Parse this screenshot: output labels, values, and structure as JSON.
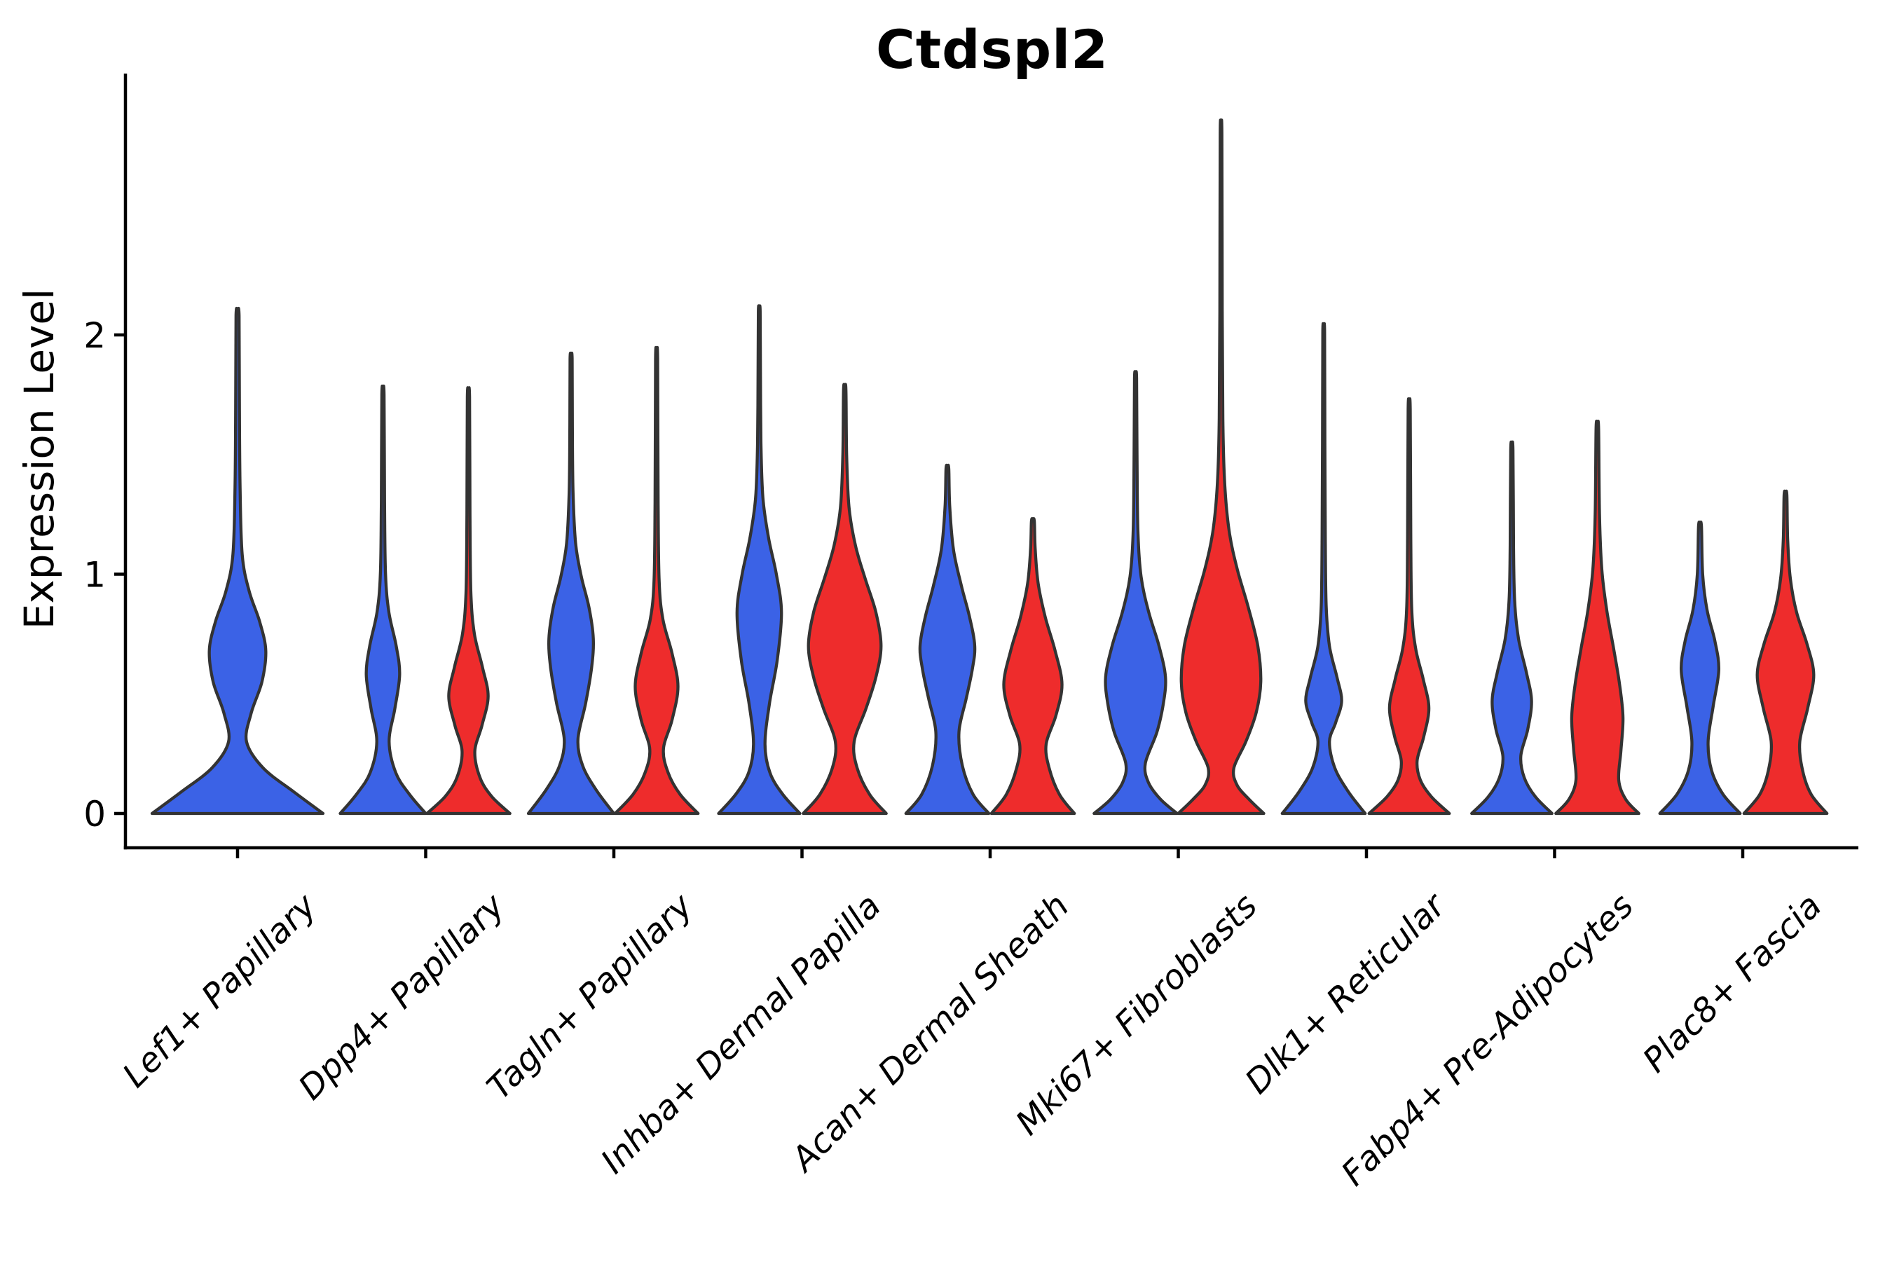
{
  "title": "Ctdspl2",
  "y_axis_label": "Expression Level",
  "chart_data": {
    "type": "violin",
    "title": "Ctdspl2",
    "xlabel": "",
    "ylabel": "Expression Level",
    "ylim": [
      0,
      2.95
    ],
    "yticks": [
      "0",
      "1",
      "2"
    ],
    "ytick_values": [
      0,
      1,
      2
    ],
    "grid": false,
    "legend": "none",
    "x_tick_label_style": "italic, rotated 45deg, anchored right",
    "categories": [
      "Lef1+ Papillary",
      "Dpp4+ Papillary",
      "Tagln+ Papillary",
      "Inhba+ Dermal Papilla",
      "Acan+ Dermal Sheath",
      "Mki67+ Fibroblasts",
      "Dlk1+ Reticular",
      "Fabp4+ Pre-Adipocytes",
      "Plac8+ Fascia"
    ],
    "group_colors": {
      "blue": "#3B62E6",
      "red": "#EE2C2C"
    },
    "outline_color": "#333333",
    "series": [
      {
        "name": "blue",
        "max_expression": [
          2.08,
          1.75,
          1.9,
          2.1,
          1.44,
          1.82,
          2.01,
          1.52,
          1.2
        ]
      },
      {
        "name": "red",
        "max_expression": [
          null,
          1.74,
          1.9,
          1.77,
          1.22,
          2.84,
          1.69,
          1.61,
          1.33
        ]
      }
    ],
    "violins": [
      {
        "category_index": 0,
        "group": "blue",
        "side": "center",
        "width": "full",
        "max": 2.08,
        "profile": [
          [
            0,
            1.0
          ],
          [
            0.09,
            0.66
          ],
          [
            0.19,
            0.3
          ],
          [
            0.3,
            0.105
          ],
          [
            0.42,
            0.16
          ],
          [
            0.55,
            0.285
          ],
          [
            0.68,
            0.33
          ],
          [
            0.8,
            0.26
          ],
          [
            0.93,
            0.135
          ],
          [
            1.08,
            0.055
          ],
          [
            1.35,
            0.03
          ],
          [
            1.7,
            0.022
          ],
          [
            2.08,
            0.018
          ]
        ]
      },
      {
        "category_index": 1,
        "group": "blue",
        "side": "left",
        "width": "half",
        "max": 1.75,
        "profile": [
          [
            0,
            1.0
          ],
          [
            0.08,
            0.62
          ],
          [
            0.17,
            0.3
          ],
          [
            0.3,
            0.145
          ],
          [
            0.44,
            0.28
          ],
          [
            0.58,
            0.39
          ],
          [
            0.7,
            0.31
          ],
          [
            0.84,
            0.14
          ],
          [
            1.0,
            0.06
          ],
          [
            1.3,
            0.038
          ],
          [
            1.75,
            0.026
          ]
        ]
      },
      {
        "category_index": 1,
        "group": "red",
        "side": "right",
        "width": "half",
        "max": 1.74,
        "profile": [
          [
            0,
            0.97
          ],
          [
            0.07,
            0.55
          ],
          [
            0.15,
            0.27
          ],
          [
            0.26,
            0.15
          ],
          [
            0.37,
            0.32
          ],
          [
            0.49,
            0.46
          ],
          [
            0.61,
            0.33
          ],
          [
            0.75,
            0.14
          ],
          [
            0.92,
            0.058
          ],
          [
            1.25,
            0.036
          ],
          [
            1.74,
            0.026
          ]
        ]
      },
      {
        "category_index": 2,
        "group": "blue",
        "side": "left",
        "width": "half",
        "max": 1.9,
        "profile": [
          [
            0,
            1.0
          ],
          [
            0.1,
            0.58
          ],
          [
            0.2,
            0.27
          ],
          [
            0.31,
            0.16
          ],
          [
            0.46,
            0.34
          ],
          [
            0.61,
            0.48
          ],
          [
            0.73,
            0.52
          ],
          [
            0.86,
            0.42
          ],
          [
            0.99,
            0.24
          ],
          [
            1.13,
            0.105
          ],
          [
            1.35,
            0.045
          ],
          [
            1.62,
            0.03
          ],
          [
            1.9,
            0.024
          ]
        ]
      },
      {
        "category_index": 2,
        "group": "red",
        "side": "right",
        "width": "half",
        "max": 1.9,
        "profile": [
          [
            0,
            0.97
          ],
          [
            0.08,
            0.55
          ],
          [
            0.17,
            0.27
          ],
          [
            0.27,
            0.16
          ],
          [
            0.39,
            0.36
          ],
          [
            0.53,
            0.5
          ],
          [
            0.67,
            0.36
          ],
          [
            0.81,
            0.15
          ],
          [
            0.97,
            0.06
          ],
          [
            1.3,
            0.036
          ],
          [
            1.9,
            0.024
          ]
        ]
      },
      {
        "category_index": 3,
        "group": "blue",
        "side": "left",
        "width": "half",
        "max": 2.1,
        "profile": [
          [
            0,
            0.95
          ],
          [
            0.08,
            0.55
          ],
          [
            0.17,
            0.25
          ],
          [
            0.29,
            0.135
          ],
          [
            0.46,
            0.24
          ],
          [
            0.64,
            0.42
          ],
          [
            0.84,
            0.52
          ],
          [
            1.0,
            0.4
          ],
          [
            1.15,
            0.22
          ],
          [
            1.32,
            0.085
          ],
          [
            1.55,
            0.04
          ],
          [
            1.85,
            0.028
          ],
          [
            2.1,
            0.022
          ]
        ]
      },
      {
        "category_index": 3,
        "group": "red",
        "side": "right",
        "width": "half",
        "max": 1.77,
        "profile": [
          [
            0,
            0.97
          ],
          [
            0.08,
            0.58
          ],
          [
            0.19,
            0.29
          ],
          [
            0.3,
            0.22
          ],
          [
            0.44,
            0.5
          ],
          [
            0.57,
            0.73
          ],
          [
            0.7,
            0.85
          ],
          [
            0.84,
            0.73
          ],
          [
            0.98,
            0.48
          ],
          [
            1.12,
            0.25
          ],
          [
            1.28,
            0.1
          ],
          [
            1.5,
            0.045
          ],
          [
            1.77,
            0.028
          ]
        ]
      },
      {
        "category_index": 4,
        "group": "blue",
        "side": "left",
        "width": "half",
        "max": 1.44,
        "profile": [
          [
            0,
            0.97
          ],
          [
            0.08,
            0.6
          ],
          [
            0.2,
            0.35
          ],
          [
            0.34,
            0.27
          ],
          [
            0.48,
            0.44
          ],
          [
            0.6,
            0.58
          ],
          [
            0.7,
            0.64
          ],
          [
            0.82,
            0.52
          ],
          [
            0.95,
            0.33
          ],
          [
            1.1,
            0.145
          ],
          [
            1.28,
            0.055
          ],
          [
            1.44,
            0.032
          ]
        ]
      },
      {
        "category_index": 4,
        "group": "red",
        "side": "right",
        "width": "half",
        "max": 1.22,
        "profile": [
          [
            0,
            0.97
          ],
          [
            0.08,
            0.62
          ],
          [
            0.19,
            0.38
          ],
          [
            0.29,
            0.31
          ],
          [
            0.41,
            0.54
          ],
          [
            0.54,
            0.68
          ],
          [
            0.68,
            0.52
          ],
          [
            0.82,
            0.29
          ],
          [
            0.96,
            0.125
          ],
          [
            1.1,
            0.055
          ],
          [
            1.22,
            0.034
          ]
        ]
      },
      {
        "category_index": 5,
        "group": "blue",
        "side": "left",
        "width": "half",
        "max": 1.82,
        "profile": [
          [
            0,
            0.97
          ],
          [
            0.06,
            0.58
          ],
          [
            0.13,
            0.3
          ],
          [
            0.21,
            0.23
          ],
          [
            0.34,
            0.5
          ],
          [
            0.46,
            0.65
          ],
          [
            0.57,
            0.7
          ],
          [
            0.7,
            0.55
          ],
          [
            0.84,
            0.31
          ],
          [
            0.99,
            0.13
          ],
          [
            1.18,
            0.055
          ],
          [
            1.5,
            0.034
          ],
          [
            1.82,
            0.024
          ]
        ]
      },
      {
        "category_index": 5,
        "group": "red",
        "side": "right",
        "width": "half",
        "max": 2.84,
        "profile": [
          [
            0,
            1.0
          ],
          [
            0.06,
            0.65
          ],
          [
            0.12,
            0.37
          ],
          [
            0.19,
            0.3
          ],
          [
            0.3,
            0.58
          ],
          [
            0.42,
            0.82
          ],
          [
            0.55,
            0.93
          ],
          [
            0.7,
            0.86
          ],
          [
            0.86,
            0.64
          ],
          [
            1.02,
            0.38
          ],
          [
            1.18,
            0.19
          ],
          [
            1.38,
            0.085
          ],
          [
            1.65,
            0.042
          ],
          [
            2.1,
            0.028
          ],
          [
            2.84,
            0.02
          ]
        ]
      },
      {
        "category_index": 6,
        "group": "blue",
        "side": "left",
        "width": "half",
        "max": 2.01,
        "profile": [
          [
            0,
            0.97
          ],
          [
            0.09,
            0.58
          ],
          [
            0.19,
            0.26
          ],
          [
            0.3,
            0.135
          ],
          [
            0.38,
            0.28
          ],
          [
            0.47,
            0.42
          ],
          [
            0.57,
            0.31
          ],
          [
            0.7,
            0.135
          ],
          [
            0.87,
            0.058
          ],
          [
            1.15,
            0.038
          ],
          [
            1.55,
            0.028
          ],
          [
            2.01,
            0.022
          ]
        ]
      },
      {
        "category_index": 6,
        "group": "red",
        "side": "right",
        "width": "half",
        "max": 1.69,
        "profile": [
          [
            0,
            0.94
          ],
          [
            0.07,
            0.52
          ],
          [
            0.14,
            0.26
          ],
          [
            0.22,
            0.185
          ],
          [
            0.32,
            0.34
          ],
          [
            0.44,
            0.46
          ],
          [
            0.56,
            0.33
          ],
          [
            0.69,
            0.15
          ],
          [
            0.85,
            0.06
          ],
          [
            1.15,
            0.038
          ],
          [
            1.69,
            0.025
          ]
        ]
      },
      {
        "category_index": 7,
        "group": "blue",
        "side": "left",
        "width": "half",
        "max": 1.52,
        "profile": [
          [
            0,
            0.94
          ],
          [
            0.07,
            0.55
          ],
          [
            0.15,
            0.29
          ],
          [
            0.24,
            0.21
          ],
          [
            0.35,
            0.37
          ],
          [
            0.47,
            0.46
          ],
          [
            0.59,
            0.34
          ],
          [
            0.73,
            0.155
          ],
          [
            0.89,
            0.065
          ],
          [
            1.12,
            0.04
          ],
          [
            1.52,
            0.027
          ]
        ]
      },
      {
        "category_index": 7,
        "group": "red",
        "side": "right",
        "width": "half",
        "max": 1.61,
        "profile": [
          [
            0,
            0.97
          ],
          [
            0.06,
            0.66
          ],
          [
            0.14,
            0.5
          ],
          [
            0.26,
            0.55
          ],
          [
            0.4,
            0.6
          ],
          [
            0.54,
            0.52
          ],
          [
            0.69,
            0.38
          ],
          [
            0.85,
            0.22
          ],
          [
            1.02,
            0.105
          ],
          [
            1.25,
            0.05
          ],
          [
            1.61,
            0.03
          ]
        ]
      },
      {
        "category_index": 8,
        "group": "blue",
        "side": "left",
        "width": "half",
        "max": 1.2,
        "profile": [
          [
            0,
            0.94
          ],
          [
            0.08,
            0.54
          ],
          [
            0.18,
            0.27
          ],
          [
            0.3,
            0.19
          ],
          [
            0.45,
            0.31
          ],
          [
            0.6,
            0.44
          ],
          [
            0.72,
            0.35
          ],
          [
            0.85,
            0.165
          ],
          [
            1.0,
            0.062
          ],
          [
            1.2,
            0.034
          ]
        ]
      },
      {
        "category_index": 8,
        "group": "red",
        "side": "right",
        "width": "half",
        "max": 1.33,
        "profile": [
          [
            0,
            0.97
          ],
          [
            0.08,
            0.6
          ],
          [
            0.18,
            0.4
          ],
          [
            0.3,
            0.335
          ],
          [
            0.44,
            0.52
          ],
          [
            0.58,
            0.66
          ],
          [
            0.71,
            0.5
          ],
          [
            0.84,
            0.26
          ],
          [
            0.98,
            0.115
          ],
          [
            1.14,
            0.052
          ],
          [
            1.33,
            0.032
          ]
        ]
      }
    ]
  }
}
